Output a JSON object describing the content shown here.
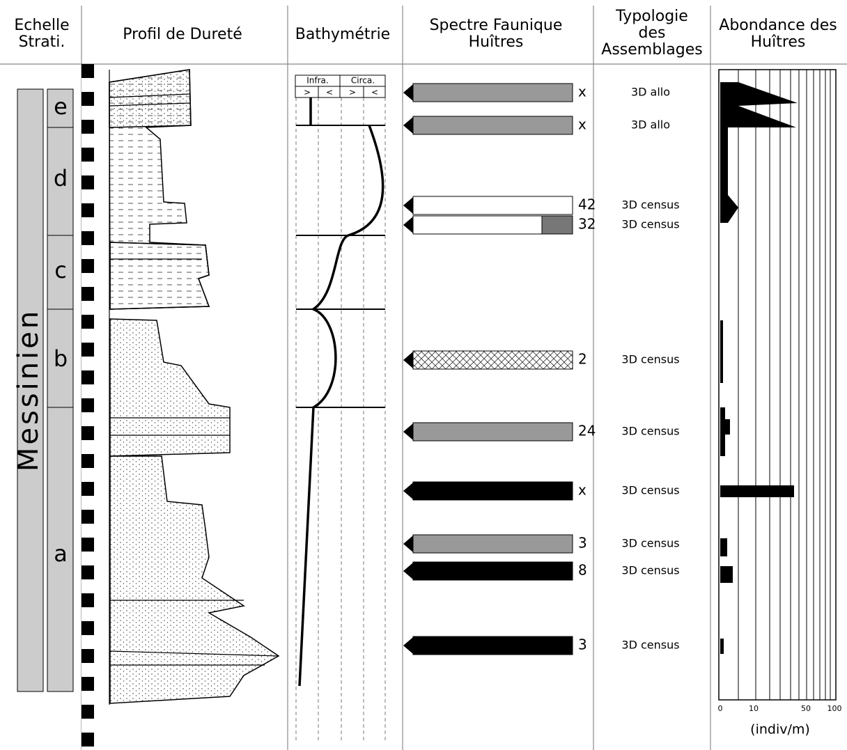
{
  "headers": [
    "Echelle Strati.",
    "Profil de Dureté",
    "Bathymétrie",
    "Spectre Faunique Huîtres",
    "Typologie des Assemblages",
    "Abondance des Huîtres"
  ],
  "stratigraphy": {
    "stage": "Messinien",
    "units": [
      "e",
      "d",
      "c",
      "b",
      "a"
    ]
  },
  "bathymetry": {
    "zones": [
      "Infra.",
      "Circa."
    ],
    "arrows": [
      ">",
      "<",
      ">",
      "<"
    ]
  },
  "rows": [
    {
      "count": "x",
      "typology": "3D allo"
    },
    {
      "count": "x",
      "typology": "3D allo"
    },
    {
      "count": "42",
      "typology": "3D census"
    },
    {
      "count": "32",
      "typology": "3D census"
    },
    {
      "count": "2",
      "typology": "3D census"
    },
    {
      "count": "24",
      "typology": "3D census"
    },
    {
      "count": "x",
      "typology": "3D census"
    },
    {
      "count": "3",
      "typology": "3D census"
    },
    {
      "count": "8",
      "typology": "3D census"
    },
    {
      "count": "3",
      "typology": "3D census"
    }
  ],
  "abundance": {
    "ticks": [
      "0",
      "10",
      "50",
      "100"
    ],
    "unit": "(indiv/m)"
  }
}
